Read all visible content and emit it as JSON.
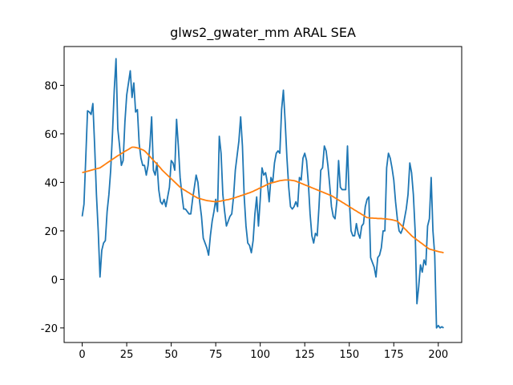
{
  "chart_data": {
    "type": "line",
    "title": "glws2_gwater_mm ARAL SEA",
    "x": [
      0,
      1,
      2,
      3,
      4,
      5,
      6,
      7,
      8,
      9,
      10,
      11,
      12,
      13,
      14,
      15,
      16,
      17,
      18,
      19,
      20,
      21,
      22,
      23,
      24,
      25,
      26,
      27,
      28,
      29,
      30,
      31,
      32,
      33,
      34,
      35,
      36,
      37,
      38,
      39,
      40,
      41,
      42,
      43,
      44,
      45,
      46,
      47,
      48,
      49,
      50,
      51,
      52,
      53,
      54,
      55,
      56,
      57,
      58,
      59,
      60,
      61,
      62,
      63,
      64,
      65,
      66,
      67,
      68,
      69,
      70,
      71,
      72,
      73,
      74,
      75,
      76,
      77,
      78,
      79,
      80,
      81,
      82,
      83,
      84,
      85,
      86,
      87,
      88,
      89,
      90,
      91,
      92,
      93,
      94,
      95,
      96,
      97,
      98,
      99,
      100,
      101,
      102,
      103,
      104,
      105,
      106,
      107,
      108,
      109,
      110,
      111,
      112,
      113,
      114,
      115,
      116,
      117,
      118,
      119,
      120,
      121,
      122,
      123,
      124,
      125,
      126,
      127,
      128,
      129,
      130,
      131,
      132,
      133,
      134,
      135,
      136,
      137,
      138,
      139,
      140,
      141,
      142,
      143,
      144,
      145,
      146,
      147,
      148,
      149,
      150,
      151,
      152,
      153,
      154,
      155,
      156,
      157,
      158,
      159,
      160,
      161,
      162,
      163,
      164,
      165,
      166,
      167,
      168,
      169,
      170,
      171,
      172,
      173,
      174,
      175,
      176,
      177,
      178,
      179,
      180,
      181,
      182,
      183,
      184,
      185,
      186,
      187,
      188,
      189,
      190,
      191,
      192,
      193,
      194,
      195,
      196,
      197,
      198,
      199,
      200,
      201,
      202,
      203
    ],
    "series": [
      {
        "color": "#1f77b4",
        "values": [
          26,
          31,
          50,
          69.5,
          69,
          68,
          72.5,
          55,
          35,
          20,
          1,
          12,
          15,
          16,
          28,
          35,
          45,
          60,
          78,
          91,
          62,
          55,
          47,
          49,
          65,
          76,
          81,
          86,
          75,
          81,
          69,
          70,
          56,
          50,
          47,
          47,
          43,
          47,
          55,
          67,
          45,
          43,
          48,
          37,
          32,
          31,
          33,
          30,
          34,
          38,
          49,
          48,
          45,
          66,
          55,
          42,
          35,
          29,
          29,
          28,
          27,
          27,
          33,
          38,
          43,
          40,
          32,
          26,
          17,
          15,
          13,
          10,
          18,
          24,
          28,
          33,
          28,
          59,
          52,
          35,
          28,
          22,
          24,
          26,
          27,
          34,
          45,
          51,
          57,
          67,
          55,
          34,
          22,
          15,
          14,
          11,
          16,
          27,
          34,
          22,
          33,
          46,
          43,
          44,
          40,
          32,
          42,
          40,
          48,
          52,
          53,
          52,
          70,
          78,
          65,
          50,
          38,
          30,
          29,
          30,
          32,
          30,
          42,
          41,
          50,
          52,
          49,
          40,
          27,
          18,
          15,
          19,
          18,
          30,
          45,
          46,
          55,
          53,
          47,
          39,
          30,
          26,
          25,
          32,
          49,
          38,
          37,
          37,
          37,
          55,
          33,
          20,
          18,
          18,
          23,
          19,
          17,
          22,
          23,
          30,
          33,
          34,
          9,
          7,
          5,
          1,
          9,
          10,
          13,
          20,
          20,
          46,
          52,
          50,
          46,
          41,
          32,
          25,
          20,
          19,
          21,
          25,
          29,
          35,
          48,
          44,
          35,
          20,
          -10,
          -3,
          6,
          3,
          8,
          6,
          22,
          25,
          42,
          20,
          10,
          -20,
          -19,
          -20,
          -19.5,
          -20
        ]
      },
      {
        "color": "#ff7f0e",
        "values": [
          44,
          44.2,
          44.4,
          44.6,
          44.8,
          45,
          45.2,
          45.4,
          45.6,
          45.8,
          46,
          46.5,
          47,
          47.5,
          48,
          48.5,
          49,
          49.5,
          50,
          50.5,
          51,
          51.4,
          51.9,
          52.3,
          52.8,
          53.2,
          53.6,
          54.1,
          54.5,
          54.5,
          54.4,
          54.2,
          54,
          53.7,
          53.4,
          53,
          52.3,
          51.5,
          50.7,
          49.9,
          49.1,
          48.3,
          47.5,
          46.7,
          45.9,
          45,
          44.3,
          43.6,
          42.9,
          42.2,
          41.5,
          40.8,
          40.1,
          39.4,
          38.7,
          38,
          37.5,
          37,
          36.6,
          36.1,
          35.7,
          35.2,
          34.8,
          34.3,
          33.9,
          33.5,
          33.3,
          33.1,
          32.9,
          32.7,
          32.5,
          32.4,
          32.3,
          32.2,
          32.1,
          32,
          32.1,
          32.2,
          32.3,
          32.5,
          32.6,
          32.8,
          32.9,
          33.1,
          33.3,
          33.5,
          33.7,
          34,
          34.2,
          34.5,
          34.7,
          35,
          35.2,
          35.5,
          35.7,
          36,
          36.3,
          36.7,
          37,
          37.4,
          37.7,
          38.1,
          38.4,
          38.8,
          39.1,
          39.5,
          39.7,
          39.9,
          40.1,
          40.3,
          40.5,
          40.7,
          40.8,
          40.9,
          41,
          41,
          41,
          40.9,
          40.8,
          40.7,
          40.5,
          40.2,
          39.9,
          39.6,
          39.3,
          39,
          38.7,
          38.4,
          38.1,
          37.8,
          37.5,
          37.2,
          36.9,
          36.6,
          36.3,
          36,
          35.7,
          35.4,
          35.1,
          34.8,
          34.5,
          34.1,
          33.6,
          33.2,
          32.7,
          32.3,
          31.8,
          31.4,
          30.9,
          30.5,
          30,
          29.5,
          29.1,
          28.6,
          28.2,
          27.7,
          27.3,
          26.8,
          26.4,
          25.9,
          25.5,
          25.4,
          25.3,
          25.3,
          25.2,
          25.2,
          25.1,
          25.1,
          25.1,
          25,
          25,
          24.9,
          24.8,
          24.7,
          24.6,
          24.4,
          24.2,
          24,
          23.3,
          22.5,
          21.8,
          21,
          20.3,
          19.5,
          18.8,
          18,
          17.4,
          16.9,
          16.3,
          15.8,
          15.2,
          14.7,
          14.1,
          13.6,
          13,
          12.5,
          12.3,
          12.1,
          11.9,
          11.7,
          11.5,
          11.3,
          11.2,
          11
        ]
      }
    ],
    "xlim": [
      -10.15,
      213.15
    ],
    "xticks": [
      0,
      25,
      50,
      75,
      100,
      125,
      150,
      175,
      200
    ],
    "ylim": [
      -26,
      96
    ],
    "yticks": [
      -20,
      0,
      20,
      40,
      60,
      80
    ],
    "grid": false
  }
}
